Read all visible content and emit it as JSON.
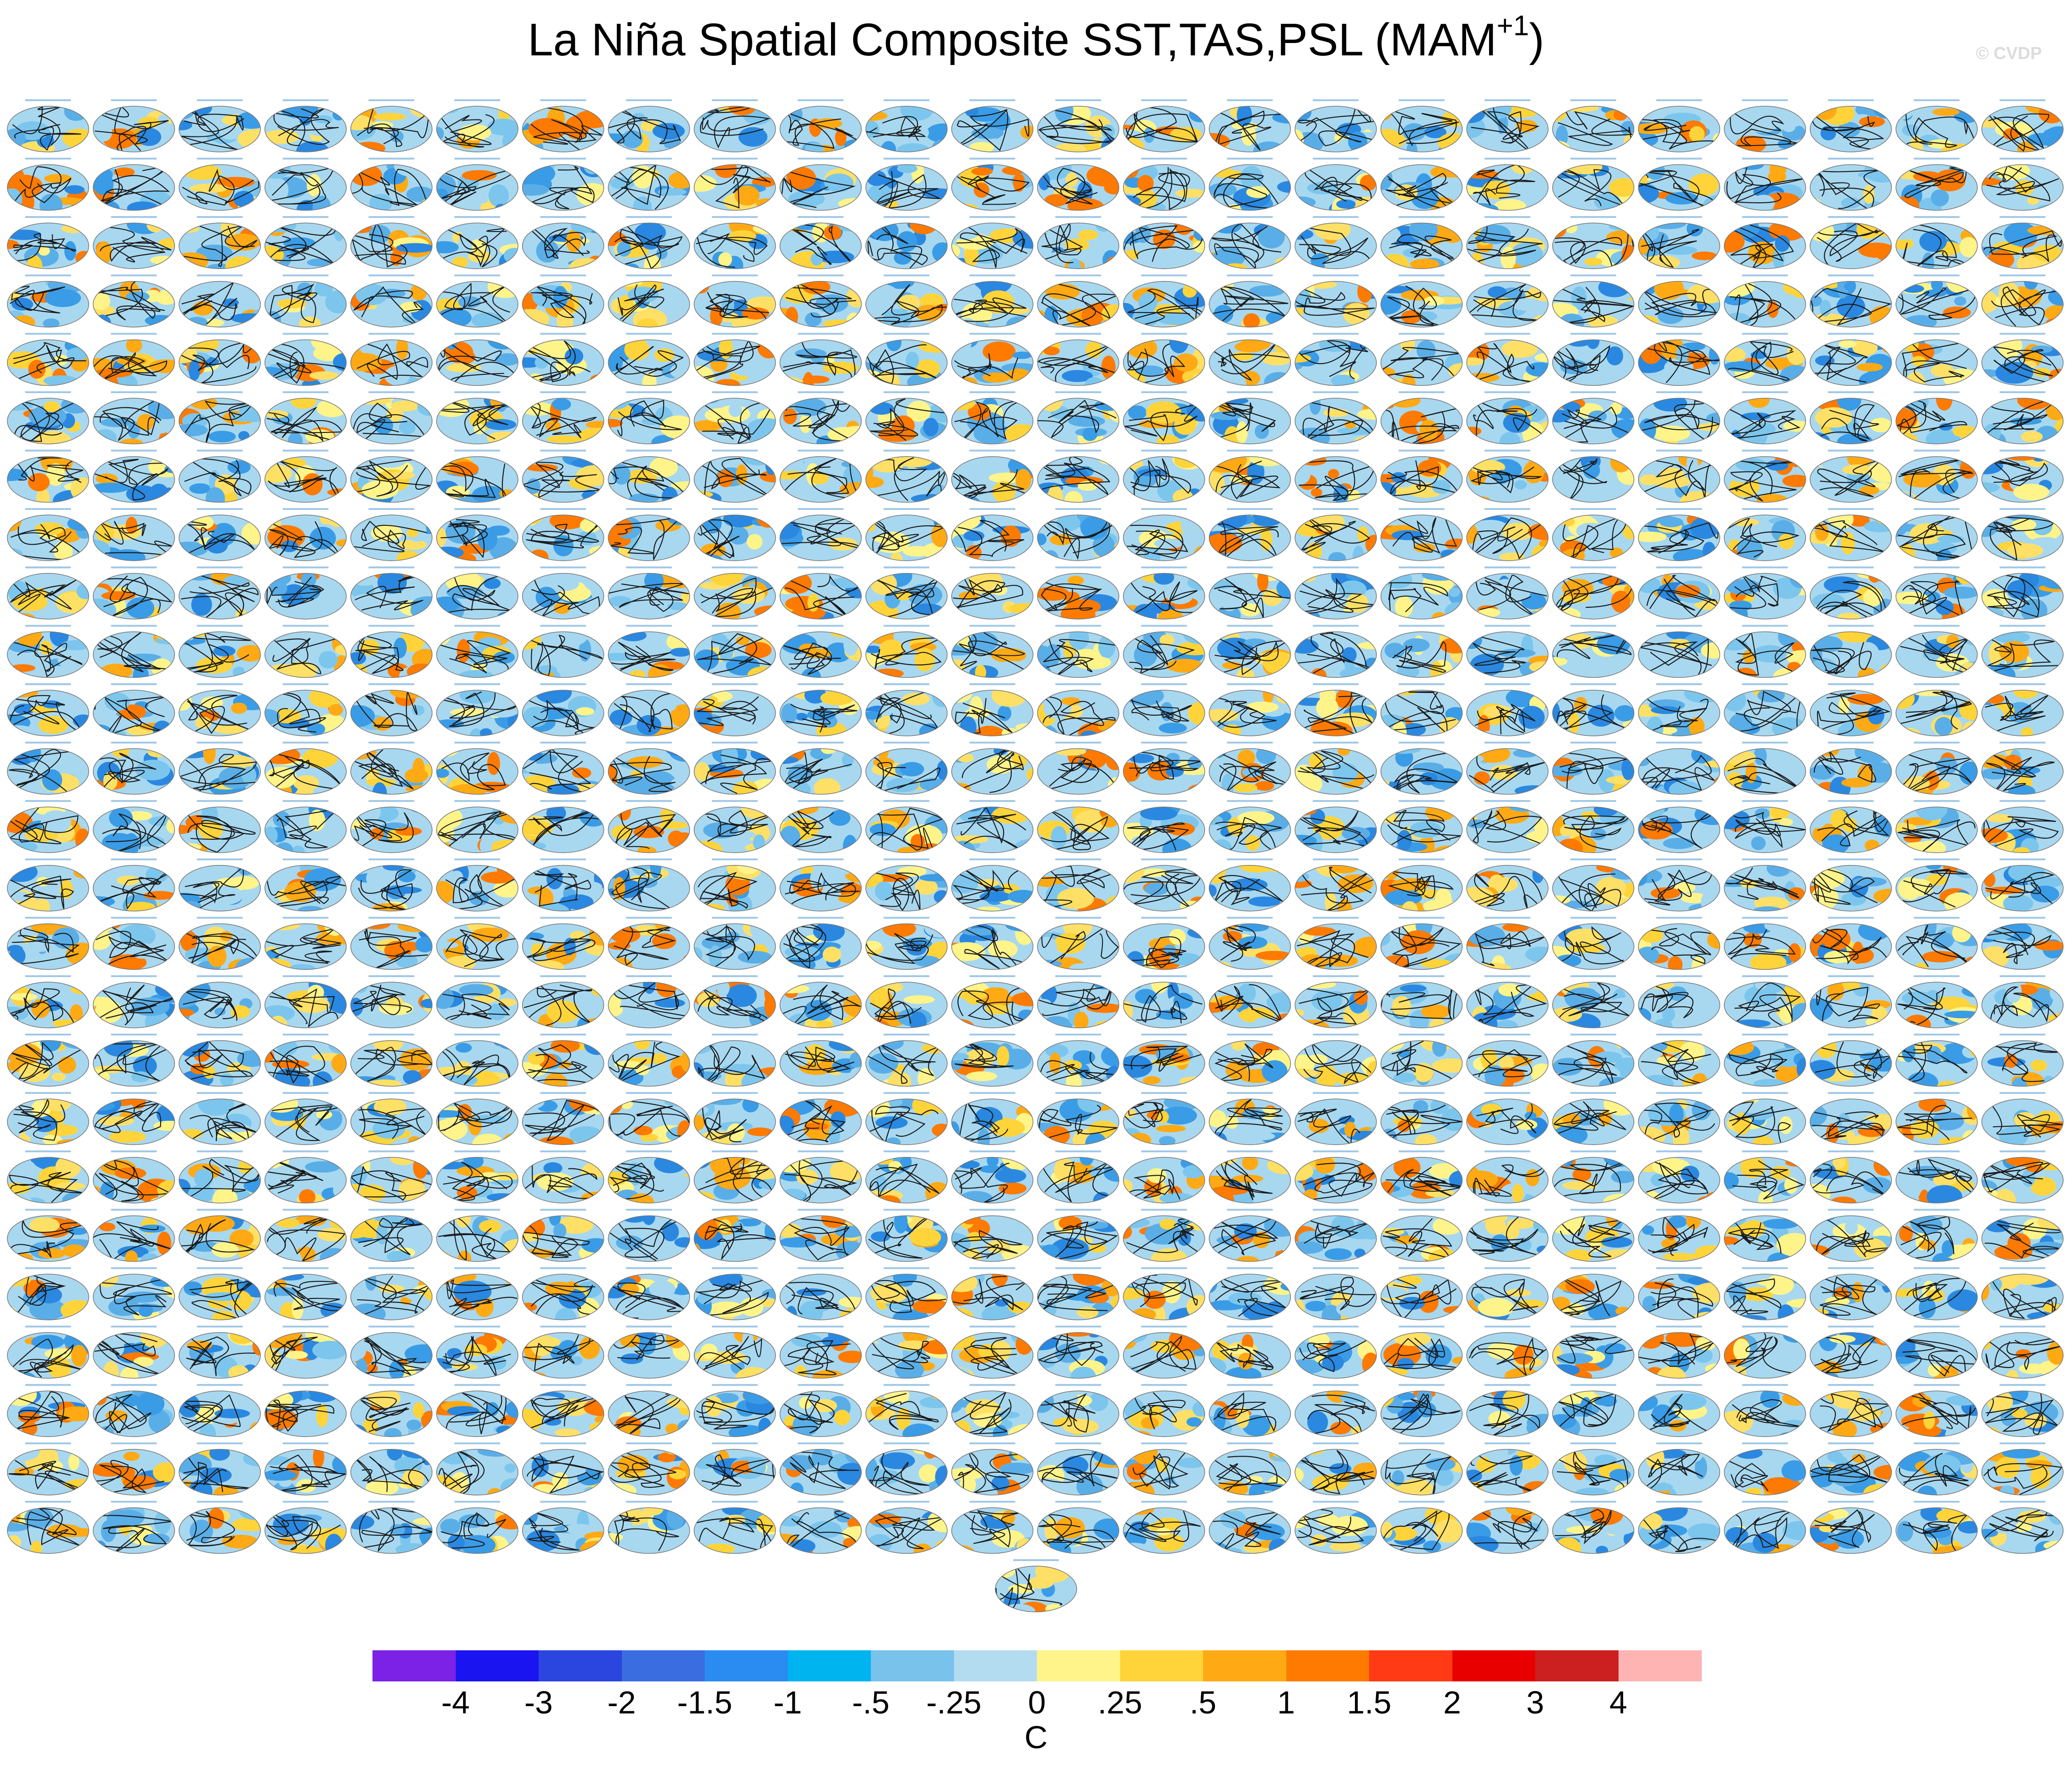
{
  "figure": {
    "title_main": "La Niña Spatial Composite SST,TAS,PSL (MAM",
    "title_sup": "+1",
    "title_end": ")",
    "watermark": "© CVDP",
    "units": "C"
  },
  "panels": {
    "rows": 25,
    "cols": 24,
    "extra_bottom_center": 1
  },
  "colorbar": {
    "labels": [
      "-4",
      "-3",
      "-2",
      "-1.5",
      "-1",
      "-.5",
      "-.25",
      "0",
      ".25",
      ".5",
      "1",
      "1.5",
      "2",
      "3",
      "4"
    ],
    "colors": [
      "#7b22e6",
      "#1a14f0",
      "#2a46de",
      "#3a6ee0",
      "#2a8cf0",
      "#00b4f0",
      "#78c2ec",
      "#b4dcf0",
      "#fff48a",
      "#ffd43a",
      "#ffaa14",
      "#ff7a00",
      "#ff3a14",
      "#e80000",
      "#cc2020",
      "#ffb4b4"
    ]
  }
}
